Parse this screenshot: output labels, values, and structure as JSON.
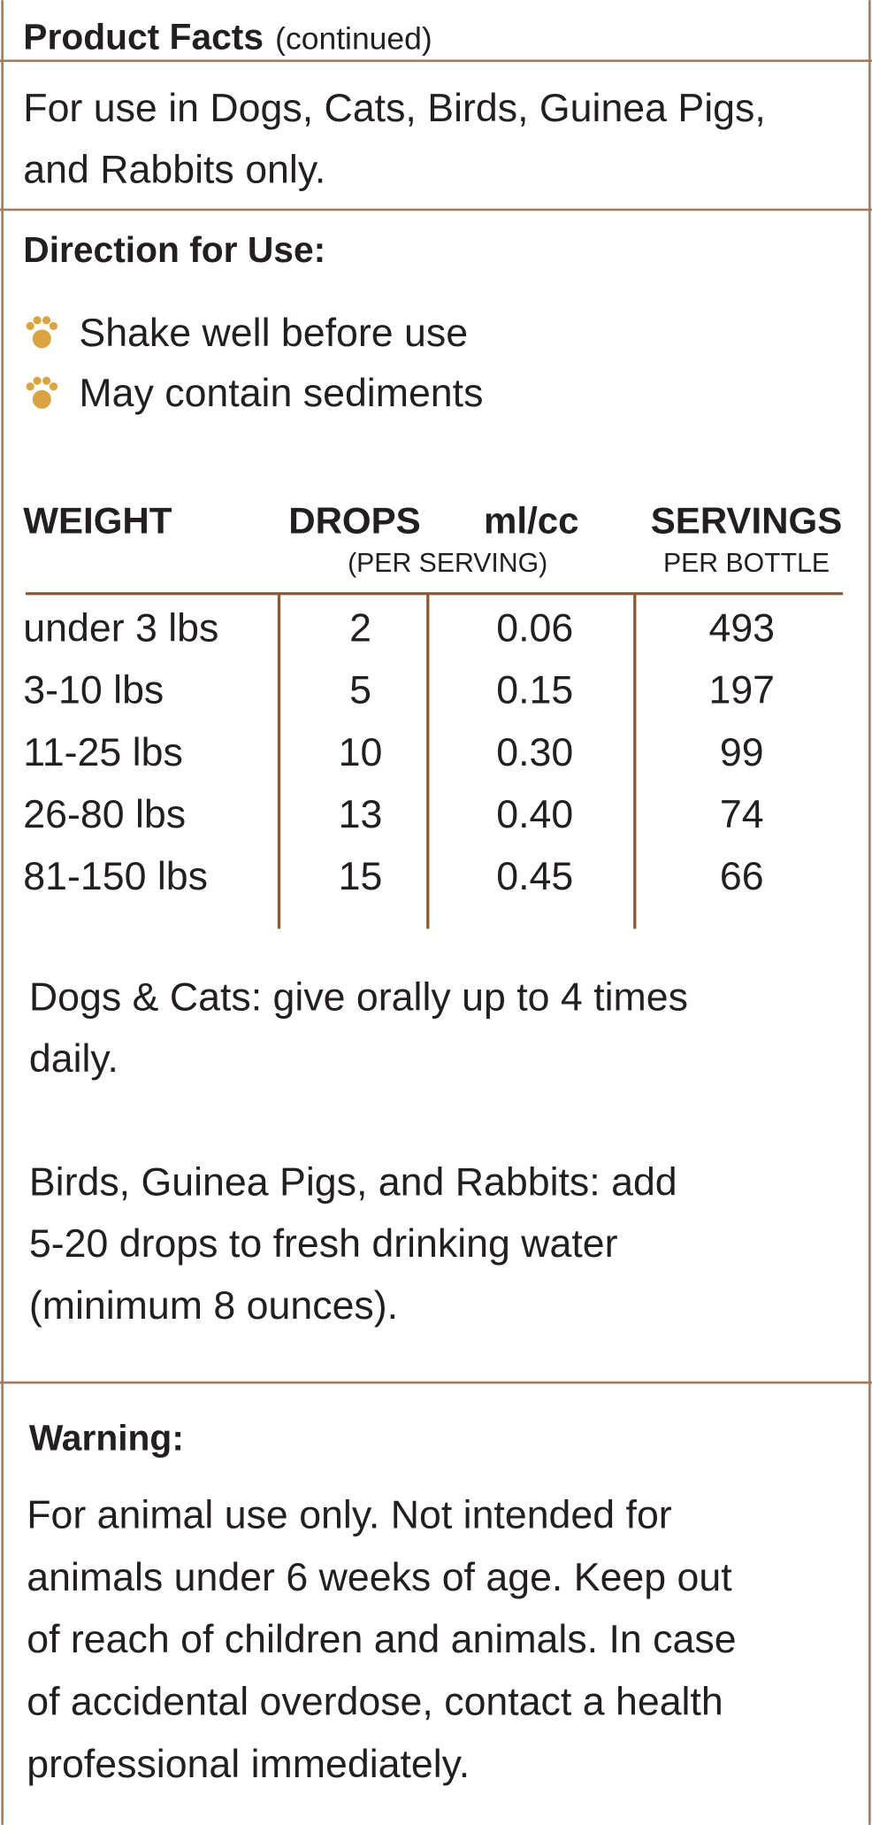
{
  "header": {
    "title": "Product Facts",
    "subtitle": "(continued)"
  },
  "usage": [
    "For use in Dogs, Cats, Birds, Guinea Pigs,",
    "and Rabbits only."
  ],
  "directions": {
    "title": "Direction for Use:",
    "bullets": [
      "Shake well before use",
      "May contain sediments"
    ]
  },
  "table": {
    "headers": [
      "WEIGHT",
      "DROPS",
      "ml/cc",
      "SERVINGS"
    ],
    "subheaders": [
      "(PER SERVING)",
      "PER BOTTLE"
    ],
    "rows": [
      [
        "under 3 lbs",
        "2",
        "0.06",
        "493"
      ],
      [
        "3-10 lbs",
        "5",
        "0.15",
        "197"
      ],
      [
        "11-25 lbs",
        "10",
        "0.30",
        "99"
      ],
      [
        "26-80 lbs",
        "13",
        "0.40",
        "74"
      ],
      [
        "81-150 lbs",
        "15",
        "0.45",
        "66"
      ]
    ]
  },
  "notes": [
    [
      "Dogs & Cats: give orally up to 4 times",
      "daily."
    ],
    [
      "Birds, Guinea Pigs, and Rabbits: add",
      "5-20 drops to fresh drinking water",
      "(minimum 8 ounces)."
    ]
  ],
  "warning": {
    "title": "Warning:",
    "lines": [
      "For animal use only. Not intended for",
      "animals under 6 weeks of age. Keep out",
      "of reach of children and animals. In case",
      "of accidental overdose, contact a health",
      "professional immediately."
    ]
  }
}
